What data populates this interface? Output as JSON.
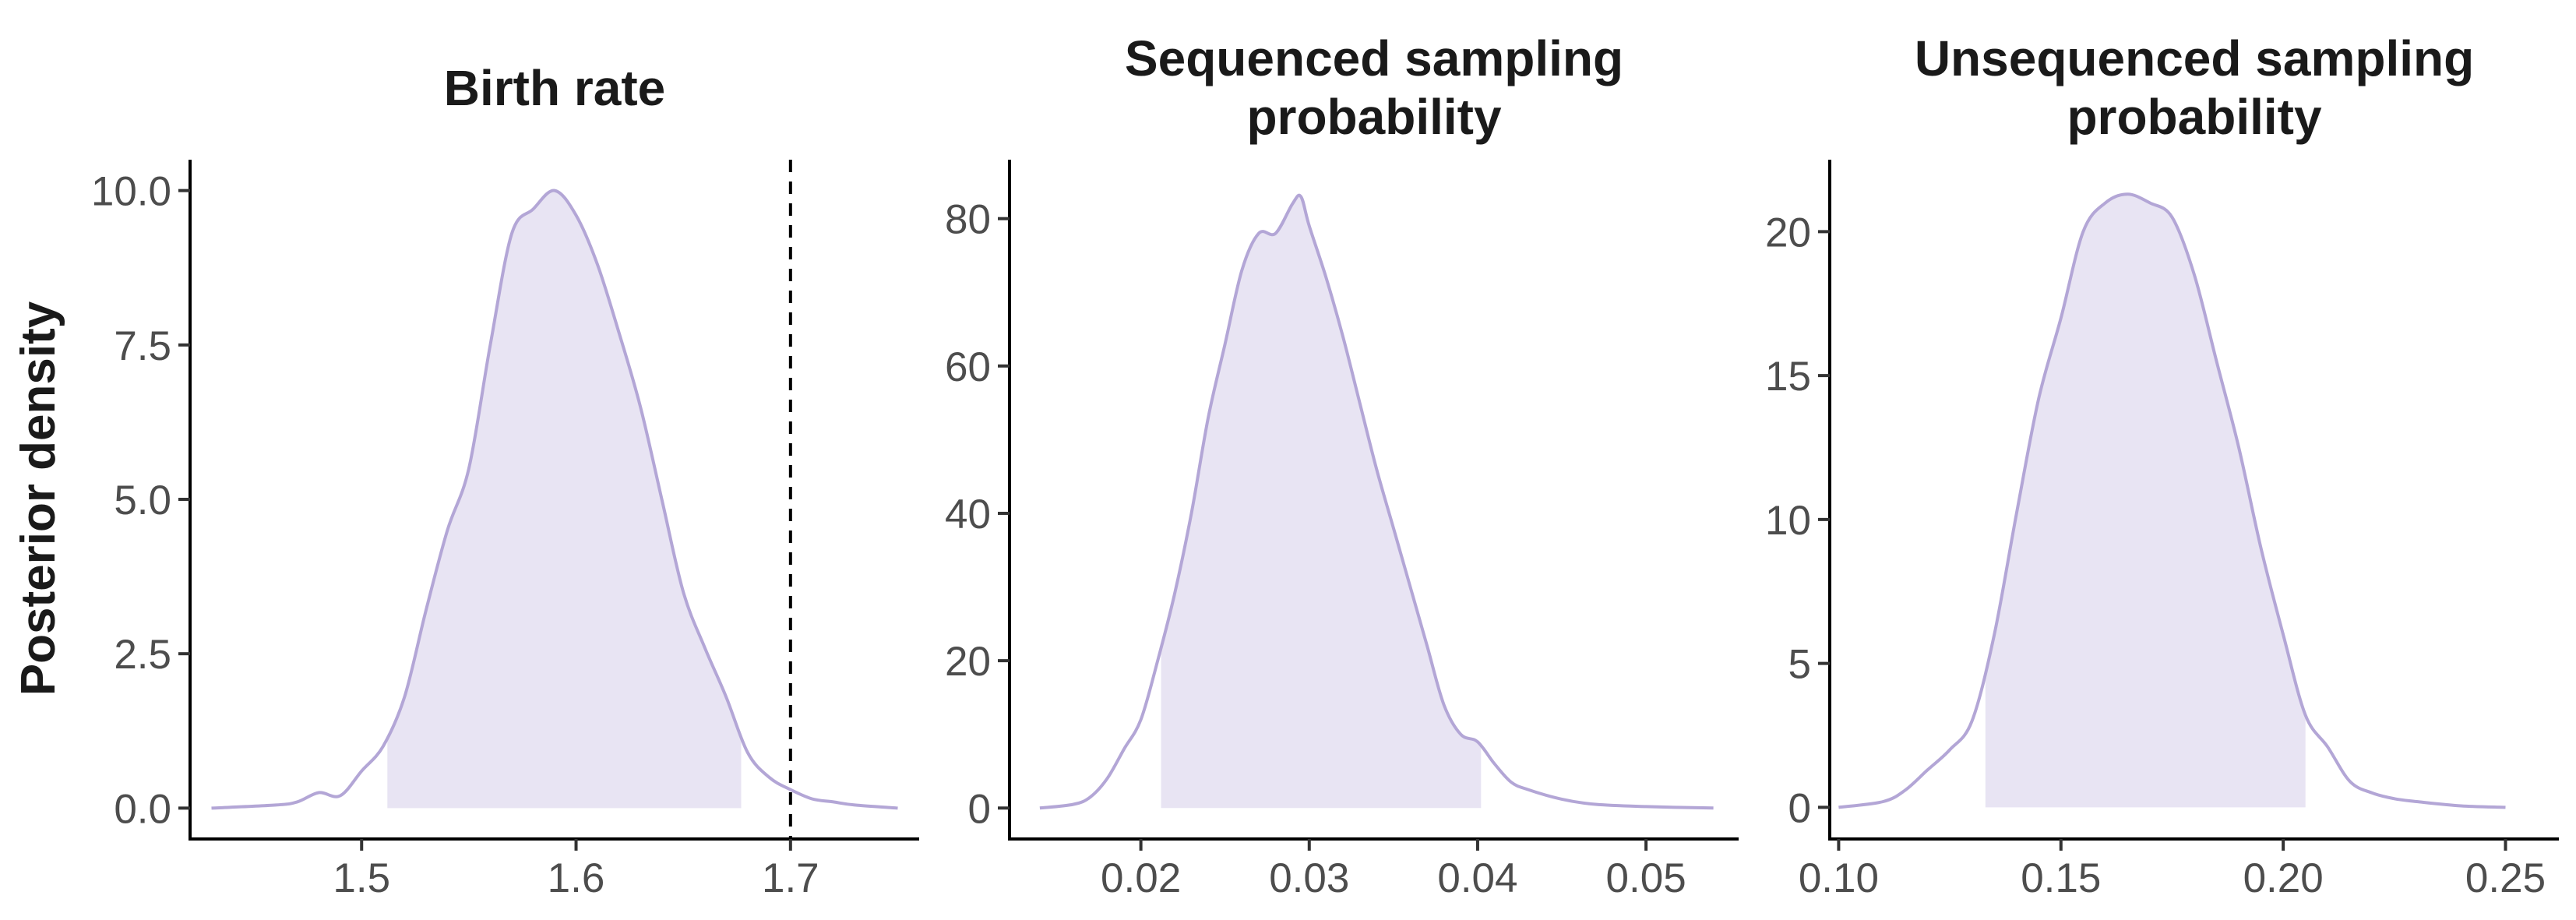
{
  "figure": {
    "ylabel": "Posterior density"
  },
  "chart_data": [
    {
      "type": "area",
      "title_lines": [
        "Birth rate"
      ],
      "xlabel": "",
      "ylabel": "Posterior density",
      "xlim": [
        1.42,
        1.76
      ],
      "ylim": [
        -0.5,
        10.5
      ],
      "xticks": [
        1.5,
        1.6,
        1.7
      ],
      "xtick_labels": [
        "1.5",
        "1.6",
        "1.7"
      ],
      "yticks": [
        0,
        2.5,
        5,
        7.5,
        10
      ],
      "ytick_labels": [
        "0.0",
        "2.5",
        "5.0",
        "7.5",
        "10.0"
      ],
      "reference_line_x": 1.7,
      "hpd_interval": [
        1.512,
        1.677
      ],
      "line_color": "#b3a6d6",
      "fill_color": "#e8e4f3",
      "grid": false,
      "density": {
        "x": [
          1.43,
          1.46,
          1.47,
          1.48,
          1.49,
          1.5,
          1.51,
          1.52,
          1.53,
          1.54,
          1.55,
          1.56,
          1.57,
          1.58,
          1.59,
          1.6,
          1.61,
          1.62,
          1.63,
          1.64,
          1.65,
          1.66,
          1.67,
          1.68,
          1.69,
          1.7,
          1.71,
          1.72,
          1.73,
          1.75
        ],
        "y": [
          0.0,
          0.05,
          0.1,
          0.25,
          0.2,
          0.6,
          1.0,
          1.8,
          3.2,
          4.5,
          5.5,
          7.5,
          9.3,
          9.7,
          10.0,
          9.6,
          8.8,
          7.7,
          6.5,
          5.0,
          3.5,
          2.6,
          1.8,
          0.9,
          0.5,
          0.3,
          0.15,
          0.1,
          0.05,
          0.0
        ]
      }
    },
    {
      "type": "area",
      "title_lines": [
        "Sequenced sampling",
        "probability"
      ],
      "xlabel": "",
      "ylabel": "",
      "xlim": [
        0.0122,
        0.0555
      ],
      "ylim": [
        -4.2,
        88
      ],
      "xticks": [
        0.02,
        0.03,
        0.04,
        0.05
      ],
      "xtick_labels": [
        "0.02",
        "0.03",
        "0.04",
        "0.05"
      ],
      "yticks": [
        0,
        20,
        40,
        60,
        80
      ],
      "ytick_labels": [
        "0",
        "20",
        "40",
        "60",
        "80"
      ],
      "hpd_interval": [
        0.0212,
        0.0402
      ],
      "line_color": "#b3a6d6",
      "fill_color": "#e8e4f3",
      "grid": false,
      "density": {
        "x": [
          0.014,
          0.016,
          0.017,
          0.018,
          0.019,
          0.02,
          0.021,
          0.022,
          0.023,
          0.024,
          0.025,
          0.026,
          0.027,
          0.028,
          0.029,
          0.0295,
          0.03,
          0.031,
          0.032,
          0.033,
          0.034,
          0.035,
          0.036,
          0.037,
          0.038,
          0.039,
          0.04,
          0.041,
          0.042,
          0.043,
          0.045,
          0.047,
          0.05,
          0.054
        ],
        "y": [
          0.0,
          0.5,
          1.5,
          4,
          8,
          12,
          20,
          29,
          40,
          53,
          63,
          73,
          78,
          78,
          82,
          83,
          79,
          72,
          64,
          55,
          46,
          38,
          30,
          22,
          14,
          10,
          9,
          6,
          3.5,
          2.5,
          1.2,
          0.5,
          0.2,
          0.0
        ]
      }
    },
    {
      "type": "area",
      "title_lines": [
        "Unsequenced sampling",
        "probability"
      ],
      "xlabel": "",
      "ylabel": "",
      "xlim": [
        0.098,
        0.262
      ],
      "ylim": [
        -1.1,
        22.5
      ],
      "xticks": [
        0.1,
        0.15,
        0.2,
        0.25
      ],
      "xtick_labels": [
        "0.10",
        "0.15",
        "0.20",
        "0.25"
      ],
      "yticks": [
        0,
        5,
        10,
        15,
        20
      ],
      "ytick_labels": [
        "0",
        "5",
        "10",
        "15",
        "20"
      ],
      "hpd_interval": [
        0.133,
        0.205
      ],
      "line_color": "#b3a6d6",
      "fill_color": "#e8e4f3",
      "grid": false,
      "density": {
        "x": [
          0.1,
          0.11,
          0.115,
          0.12,
          0.125,
          0.13,
          0.135,
          0.14,
          0.145,
          0.15,
          0.155,
          0.16,
          0.165,
          0.17,
          0.175,
          0.18,
          0.185,
          0.19,
          0.195,
          0.2,
          0.205,
          0.21,
          0.215,
          0.22,
          0.225,
          0.23,
          0.24,
          0.25
        ],
        "y": [
          0.0,
          0.2,
          0.6,
          1.3,
          2.0,
          3.0,
          6.0,
          10.2,
          14.2,
          17.0,
          20.0,
          21.0,
          21.3,
          21.0,
          20.5,
          18.5,
          15.5,
          12.5,
          9.0,
          6.0,
          3.2,
          2.1,
          0.9,
          0.5,
          0.3,
          0.2,
          0.05,
          0.0
        ]
      }
    }
  ]
}
